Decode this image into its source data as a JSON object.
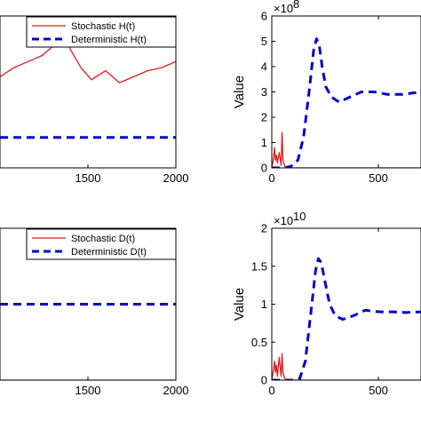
{
  "chart_data": [
    {
      "type": "line",
      "panel": "top-left",
      "xlim": [
        0,
        2000
      ],
      "x_ticks": [
        "1500",
        "2000"
      ],
      "y_ticks": [],
      "ylabel": "",
      "legend": {
        "placement": "top-right"
      },
      "series": [
        {
          "name": "Stochastic H(t)",
          "color": "#e41a1c",
          "style": "solid",
          "x": [
            1000,
            1080,
            1160,
            1240,
            1300,
            1340,
            1360,
            1400,
            1460,
            1520,
            1600,
            1680,
            1760,
            1840,
            1920,
            2000
          ],
          "y": [
            0.6,
            0.66,
            0.7,
            0.74,
            0.8,
            0.9,
            0.96,
            0.78,
            0.66,
            0.58,
            0.64,
            0.56,
            0.6,
            0.64,
            0.66,
            0.7
          ]
        },
        {
          "name": "Deterministic H(t)",
          "color": "#0000cc",
          "style": "dashed",
          "x": [
            1000,
            2000
          ],
          "y": [
            0.2,
            0.2
          ]
        }
      ]
    },
    {
      "type": "line",
      "panel": "top-right",
      "xlim": [
        0,
        800
      ],
      "ylim": [
        0,
        6
      ],
      "x_ticks": [
        "0",
        "500"
      ],
      "y_ticks": [
        "0",
        "1",
        "2",
        "3",
        "4",
        "5",
        "6"
      ],
      "multiplier": "×10",
      "multiplier_exp": "8",
      "ylabel": "Value",
      "series": [
        {
          "color": "#0000cc",
          "style": "dashed",
          "x": [
            0,
            60,
            100,
            140,
            170,
            200,
            225,
            240,
            255,
            270,
            290,
            320,
            360,
            420,
            480,
            550,
            620,
            700,
            800
          ],
          "y": [
            0,
            0,
            0.05,
            0.3,
            1.2,
            3.0,
            4.7,
            5.1,
            4.8,
            4.0,
            3.2,
            2.8,
            2.6,
            2.8,
            3.0,
            3.0,
            2.9,
            2.9,
            3.0
          ]
        },
        {
          "color": "#e41a1c",
          "style": "solid",
          "x": [
            0,
            10,
            15,
            20,
            25,
            30,
            40,
            50,
            55,
            60,
            65,
            70,
            80,
            90,
            800
          ],
          "y": [
            0,
            0.4,
            0.8,
            0.3,
            0.5,
            0.2,
            0.6,
            0.1,
            1.4,
            0.3,
            0.2,
            0.05,
            0,
            0,
            0
          ]
        }
      ]
    },
    {
      "type": "line",
      "panel": "bottom-left",
      "xlim": [
        0,
        2000
      ],
      "x_ticks": [
        "1500",
        "2000"
      ],
      "y_ticks": [],
      "ylabel": "",
      "legend": {
        "placement": "top-right"
      },
      "series": [
        {
          "name": "Stochastic D(t)",
          "color": "#e41a1c",
          "style": "solid",
          "x": [
            1000,
            2000
          ],
          "y": [
            0,
            0
          ]
        },
        {
          "name": "Deterministic D(t)",
          "color": "#0000cc",
          "style": "dashed",
          "x": [
            1000,
            2000
          ],
          "y": [
            0.5,
            0.5
          ]
        }
      ]
    },
    {
      "type": "line",
      "panel": "bottom-right",
      "xlim": [
        0,
        800
      ],
      "ylim": [
        0,
        2
      ],
      "x_ticks": [
        "0",
        "500"
      ],
      "y_ticks": [
        "0",
        "0.5",
        "1",
        "1.5",
        "2"
      ],
      "multiplier": "×10",
      "multiplier_exp": "10",
      "ylabel": "Value",
      "series": [
        {
          "color": "#0000cc",
          "style": "dashed",
          "x": [
            0,
            120,
            150,
            180,
            210,
            235,
            250,
            265,
            285,
            310,
            340,
            380,
            440,
            500,
            580,
            650,
            720,
            800
          ],
          "y": [
            0,
            0,
            0.02,
            0.25,
            0.9,
            1.45,
            1.6,
            1.55,
            1.3,
            1.0,
            0.85,
            0.8,
            0.85,
            0.92,
            0.9,
            0.9,
            0.89,
            0.9
          ]
        },
        {
          "color": "#e41a1c",
          "style": "solid",
          "x": [
            0,
            10,
            15,
            20,
            25,
            30,
            40,
            50,
            55,
            60,
            70,
            80,
            800
          ],
          "y": [
            0,
            0.15,
            0.25,
            0.1,
            0.2,
            0.05,
            0.3,
            0.05,
            0.35,
            0.1,
            0.02,
            0,
            0
          ]
        }
      ]
    }
  ]
}
